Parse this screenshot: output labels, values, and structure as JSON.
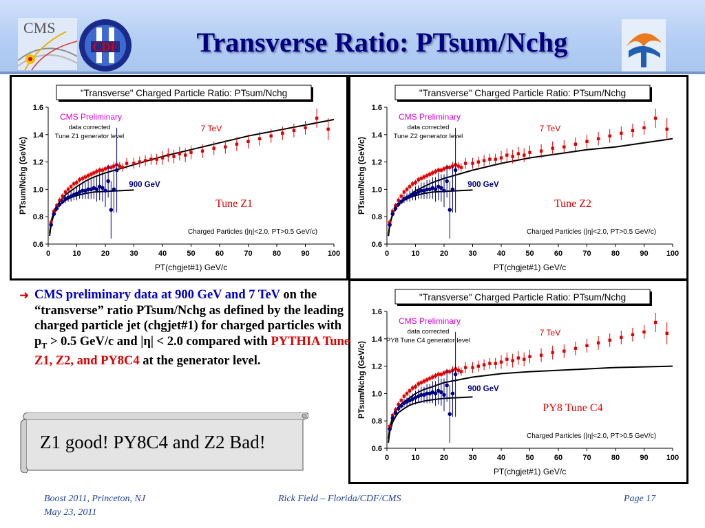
{
  "slide": {
    "title": "Transverse Ratio: PTsum/Nchg",
    "logos": {
      "left1": "CMS",
      "left2": "CDF"
    }
  },
  "bullet": {
    "lead": "CMS preliminary data at  900 GeV and 7 TeV",
    "t1": " on the “transverse” ratio PTsum/Nchg as defined by the leading charged particle jet (chgjet#1) for charged particles with p",
    "sub": "T",
    "t2": " > 0.5 GeV/c and |η| < 2.0 compared with ",
    "red": "PYTHIA Tune Z1, Z2, and PY8C4",
    "t3": " at the generator level."
  },
  "callout": {
    "text": "Z1 good!  PY8C4 and Z2 Bad!"
  },
  "footer": {
    "left1": "Boost 2011, Princeton, NJ",
    "left2": "May 23, 2011",
    "center": "Rick Field – Florida/CDF/CMS",
    "right": "Page 17"
  },
  "colors": {
    "data_7tev": "#e00000",
    "data_900gev": "#000080",
    "theory": "#000000",
    "cms_prelim": "#e000e0",
    "tune_label": "#e00000",
    "title_blue": "#000080"
  },
  "chart_data": [
    {
      "type": "scatter",
      "title": "\"Transverse\" Charged Particle Ratio: PTsum/Nchg",
      "xlabel": "PT(chgjet#1) GeV/c",
      "ylabel": "PTsum/Nchg (GeV/c)",
      "xlim": [
        0,
        100
      ],
      "ylim": [
        0.6,
        1.6
      ],
      "xticks": [
        "0",
        "10",
        "20",
        "30",
        "40",
        "50",
        "60",
        "70",
        "80",
        "90",
        "100"
      ],
      "yticks": [
        "0.6",
        "0.8",
        "1.0",
        "1.2",
        "1.4",
        "1.6"
      ],
      "annotations": {
        "prelim": "CMS Preliminary",
        "corr": "data corrected",
        "gen": "Tune Z1 generator level",
        "tune": "Tune Z1",
        "cuts": "Charged Particles (|η|<2.0, PT>0.5 GeV/c)",
        "label_7": "7 TeV",
        "label_900": "900 GeV"
      },
      "series": [
        {
          "name": "7 TeV",
          "x": [
            1,
            2,
            3,
            4,
            5,
            6,
            7,
            8,
            9,
            10,
            11,
            12,
            13,
            14,
            15,
            16,
            17,
            18,
            19,
            20,
            21,
            22,
            23,
            24,
            25,
            26,
            27.5,
            30,
            32,
            34,
            36,
            38,
            40,
            42,
            44,
            46,
            48,
            50,
            54,
            58,
            62,
            66,
            70,
            74,
            78,
            82,
            86,
            90,
            94,
            98
          ],
          "y": [
            0.76,
            0.84,
            0.88,
            0.92,
            0.95,
            0.98,
            1.0,
            1.02,
            1.04,
            1.05,
            1.07,
            1.08,
            1.09,
            1.1,
            1.11,
            1.12,
            1.13,
            1.14,
            1.14,
            1.15,
            1.16,
            1.16,
            1.17,
            1.18,
            1.17,
            1.16,
            1.19,
            1.19,
            1.2,
            1.21,
            1.22,
            1.22,
            1.23,
            1.25,
            1.24,
            1.26,
            1.25,
            1.27,
            1.28,
            1.3,
            1.31,
            1.33,
            1.35,
            1.37,
            1.39,
            1.41,
            1.43,
            1.45,
            1.52,
            1.44
          ],
          "err": [
            0.02,
            0.02,
            0.02,
            0.02,
            0.02,
            0.02,
            0.02,
            0.02,
            0.02,
            0.02,
            0.02,
            0.02,
            0.02,
            0.02,
            0.02,
            0.02,
            0.02,
            0.02,
            0.02,
            0.02,
            0.02,
            0.02,
            0.03,
            0.03,
            0.03,
            0.03,
            0.04,
            0.04,
            0.04,
            0.04,
            0.04,
            0.04,
            0.05,
            0.05,
            0.05,
            0.05,
            0.05,
            0.05,
            0.05,
            0.05,
            0.05,
            0.05,
            0.05,
            0.05,
            0.05,
            0.05,
            0.05,
            0.05,
            0.07,
            0.08
          ]
        },
        {
          "name": "900 GeV",
          "x": [
            1,
            2,
            3,
            4,
            5,
            6,
            7,
            8,
            9,
            10,
            11,
            12,
            13,
            14,
            15,
            16,
            17,
            18,
            19,
            20,
            21,
            22,
            23,
            24
          ],
          "y": [
            0.74,
            0.82,
            0.86,
            0.89,
            0.91,
            0.93,
            0.94,
            0.95,
            0.96,
            0.97,
            0.98,
            0.99,
            0.99,
            1.0,
            1.0,
            1.01,
            1.0,
            1.02,
            1.01,
            0.99,
            1.06,
            0.85,
            1.0,
            1.14
          ],
          "err": [
            0.02,
            0.02,
            0.02,
            0.02,
            0.02,
            0.03,
            0.03,
            0.04,
            0.04,
            0.05,
            0.05,
            0.06,
            0.06,
            0.07,
            0.07,
            0.08,
            0.09,
            0.1,
            0.1,
            0.12,
            0.12,
            0.21,
            0.17,
            0.31
          ]
        }
      ],
      "theory": {
        "900 GeV": {
          "x": [
            0.5,
            1,
            2,
            3,
            4,
            6,
            8,
            10,
            13,
            16,
            20,
            25,
            30
          ],
          "y": [
            0.66,
            0.74,
            0.82,
            0.86,
            0.89,
            0.92,
            0.94,
            0.955,
            0.97,
            0.98,
            0.985,
            0.99,
            0.995
          ]
        },
        "7 TeV": {
          "x": [
            0.5,
            1,
            2,
            3,
            4,
            6,
            8,
            10,
            13,
            16,
            20,
            25,
            30,
            40,
            50,
            60,
            70,
            80,
            90,
            100
          ],
          "y": [
            0.68,
            0.76,
            0.84,
            0.88,
            0.91,
            0.96,
            0.99,
            1.02,
            1.06,
            1.09,
            1.12,
            1.15,
            1.18,
            1.24,
            1.29,
            1.34,
            1.39,
            1.43,
            1.47,
            1.51
          ]
        }
      }
    },
    {
      "type": "scatter",
      "title": "\"Transverse\" Charged Particle Ratio: PTsum/Nchg",
      "xlabel": "PT(chgjet#1) GeV/c",
      "ylabel": "PTsum/Nchg (GeV/c)",
      "xlim": [
        0,
        100
      ],
      "ylim": [
        0.6,
        1.6
      ],
      "xticks": [
        "0",
        "10",
        "20",
        "30",
        "40",
        "50",
        "60",
        "70",
        "80",
        "90",
        "100"
      ],
      "yticks": [
        "0.6",
        "0.8",
        "1.0",
        "1.2",
        "1.4",
        "1.6"
      ],
      "annotations": {
        "prelim": "CMS Preliminary",
        "corr": "data corrected",
        "gen": "Tune Z2 generator level",
        "tune": "Tune Z2",
        "cuts": "Charged Particles (|η|<2.0, PT>0.5 GeV/c)",
        "label_7": "7 TeV",
        "label_900": "900 GeV"
      },
      "series": [
        {
          "name": "7 TeV",
          "x": [
            1,
            2,
            3,
            4,
            5,
            6,
            7,
            8,
            9,
            10,
            11,
            12,
            13,
            14,
            15,
            16,
            17,
            18,
            19,
            20,
            21,
            22,
            23,
            24,
            25,
            26,
            27.5,
            30,
            32,
            34,
            36,
            38,
            40,
            42,
            44,
            46,
            48,
            50,
            54,
            58,
            62,
            66,
            70,
            74,
            78,
            82,
            86,
            90,
            94,
            98
          ],
          "y": [
            0.76,
            0.84,
            0.88,
            0.92,
            0.95,
            0.98,
            1.0,
            1.02,
            1.04,
            1.05,
            1.07,
            1.08,
            1.09,
            1.1,
            1.11,
            1.12,
            1.13,
            1.14,
            1.14,
            1.15,
            1.16,
            1.16,
            1.17,
            1.18,
            1.17,
            1.16,
            1.19,
            1.19,
            1.2,
            1.21,
            1.22,
            1.22,
            1.23,
            1.25,
            1.24,
            1.26,
            1.25,
            1.27,
            1.28,
            1.3,
            1.31,
            1.33,
            1.35,
            1.37,
            1.39,
            1.41,
            1.43,
            1.45,
            1.52,
            1.44
          ],
          "err": [
            0.02,
            0.02,
            0.02,
            0.02,
            0.02,
            0.02,
            0.02,
            0.02,
            0.02,
            0.02,
            0.02,
            0.02,
            0.02,
            0.02,
            0.02,
            0.02,
            0.02,
            0.02,
            0.02,
            0.02,
            0.02,
            0.02,
            0.03,
            0.03,
            0.03,
            0.03,
            0.04,
            0.04,
            0.04,
            0.04,
            0.04,
            0.04,
            0.05,
            0.05,
            0.05,
            0.05,
            0.05,
            0.05,
            0.05,
            0.05,
            0.05,
            0.05,
            0.05,
            0.05,
            0.05,
            0.05,
            0.05,
            0.05,
            0.07,
            0.08
          ]
        },
        {
          "name": "900 GeV",
          "x": [
            1,
            2,
            3,
            4,
            5,
            6,
            7,
            8,
            9,
            10,
            11,
            12,
            13,
            14,
            15,
            16,
            17,
            18,
            19,
            20,
            21,
            22,
            23,
            24
          ],
          "y": [
            0.74,
            0.82,
            0.86,
            0.89,
            0.91,
            0.93,
            0.94,
            0.95,
            0.96,
            0.97,
            0.98,
            0.99,
            0.99,
            1.0,
            1.0,
            1.01,
            1.0,
            1.02,
            1.01,
            0.99,
            1.06,
            0.85,
            1.0,
            1.14
          ],
          "err": [
            0.02,
            0.02,
            0.02,
            0.02,
            0.02,
            0.03,
            0.03,
            0.04,
            0.04,
            0.05,
            0.05,
            0.06,
            0.06,
            0.07,
            0.07,
            0.08,
            0.09,
            0.1,
            0.1,
            0.12,
            0.12,
            0.21,
            0.17,
            0.31
          ]
        }
      ],
      "theory": {
        "900 GeV": {
          "x": [
            0.5,
            1,
            2,
            3,
            4,
            6,
            8,
            10,
            13,
            16,
            20,
            25,
            30
          ],
          "y": [
            0.66,
            0.74,
            0.82,
            0.86,
            0.89,
            0.92,
            0.94,
            0.955,
            0.97,
            0.98,
            0.985,
            0.99,
            0.995
          ]
        },
        "7 TeV": {
          "x": [
            0.5,
            1,
            2,
            3,
            4,
            6,
            8,
            10,
            13,
            16,
            20,
            25,
            30,
            40,
            50,
            60,
            70,
            80,
            90,
            100
          ],
          "y": [
            0.66,
            0.74,
            0.82,
            0.86,
            0.89,
            0.93,
            0.96,
            0.99,
            1.02,
            1.05,
            1.08,
            1.11,
            1.14,
            1.19,
            1.23,
            1.26,
            1.29,
            1.31,
            1.34,
            1.37
          ]
        }
      }
    },
    {
      "type": "scatter",
      "title": "\"Transverse\" Charged Particle Ratio: PTsum/Nchg",
      "xlabel": "PT(chgjet#1) GeV/c",
      "ylabel": "PTsum/Nchg (GeV/c)",
      "xlim": [
        0,
        100
      ],
      "ylim": [
        0.6,
        1.6
      ],
      "xticks": [
        "0",
        "10",
        "20",
        "30",
        "40",
        "50",
        "60",
        "70",
        "80",
        "90",
        "100"
      ],
      "yticks": [
        "0.6",
        "0.8",
        "1.0",
        "1.2",
        "1.4",
        "1.6"
      ],
      "annotations": {
        "prelim": "CMS Preliminary",
        "corr": "data corrected",
        "gen": "PY8 Tune C4 generator level",
        "tune": "PY8 Tune C4",
        "cuts": "Charged Particles (|η|<2.0, PT>0.5 GeV/c)",
        "label_7": "7 TeV",
        "label_900": "900 GeV"
      },
      "series": [
        {
          "name": "7 TeV",
          "x": [
            1,
            2,
            3,
            4,
            5,
            6,
            7,
            8,
            9,
            10,
            11,
            12,
            13,
            14,
            15,
            16,
            17,
            18,
            19,
            20,
            21,
            22,
            23,
            24,
            25,
            26,
            27.5,
            30,
            32,
            34,
            36,
            38,
            40,
            42,
            44,
            46,
            48,
            50,
            54,
            58,
            62,
            66,
            70,
            74,
            78,
            82,
            86,
            90,
            94,
            98
          ],
          "y": [
            0.76,
            0.84,
            0.88,
            0.92,
            0.95,
            0.98,
            1.0,
            1.02,
            1.04,
            1.05,
            1.07,
            1.08,
            1.09,
            1.1,
            1.11,
            1.12,
            1.13,
            1.14,
            1.14,
            1.15,
            1.16,
            1.16,
            1.17,
            1.18,
            1.17,
            1.16,
            1.19,
            1.19,
            1.2,
            1.21,
            1.22,
            1.22,
            1.23,
            1.25,
            1.24,
            1.26,
            1.25,
            1.27,
            1.28,
            1.3,
            1.31,
            1.33,
            1.35,
            1.37,
            1.39,
            1.41,
            1.43,
            1.45,
            1.52,
            1.44
          ],
          "err": [
            0.02,
            0.02,
            0.02,
            0.02,
            0.02,
            0.02,
            0.02,
            0.02,
            0.02,
            0.02,
            0.02,
            0.02,
            0.02,
            0.02,
            0.02,
            0.02,
            0.02,
            0.02,
            0.02,
            0.02,
            0.02,
            0.02,
            0.03,
            0.03,
            0.03,
            0.03,
            0.04,
            0.04,
            0.04,
            0.04,
            0.04,
            0.04,
            0.05,
            0.05,
            0.05,
            0.05,
            0.05,
            0.05,
            0.05,
            0.05,
            0.05,
            0.05,
            0.05,
            0.05,
            0.05,
            0.05,
            0.05,
            0.05,
            0.07,
            0.08
          ]
        },
        {
          "name": "900 GeV",
          "x": [
            1,
            2,
            3,
            4,
            5,
            6,
            7,
            8,
            9,
            10,
            11,
            12,
            13,
            14,
            15,
            16,
            17,
            18,
            19,
            20,
            21,
            22,
            23,
            24
          ],
          "y": [
            0.74,
            0.82,
            0.86,
            0.89,
            0.91,
            0.93,
            0.94,
            0.95,
            0.96,
            0.97,
            0.98,
            0.99,
            0.99,
            1.0,
            1.0,
            1.01,
            1.0,
            1.02,
            1.01,
            0.99,
            1.06,
            0.85,
            1.0,
            1.14
          ],
          "err": [
            0.02,
            0.02,
            0.02,
            0.02,
            0.02,
            0.03,
            0.03,
            0.04,
            0.04,
            0.05,
            0.05,
            0.06,
            0.06,
            0.07,
            0.07,
            0.08,
            0.09,
            0.1,
            0.1,
            0.12,
            0.12,
            0.21,
            0.17,
            0.31
          ]
        }
      ],
      "theory": {
        "900 GeV": {
          "x": [
            0.5,
            1,
            2,
            3,
            4,
            6,
            8,
            10,
            13,
            16,
            20,
            25,
            30
          ],
          "y": [
            0.64,
            0.72,
            0.79,
            0.83,
            0.86,
            0.89,
            0.915,
            0.93,
            0.945,
            0.955,
            0.965,
            0.97,
            0.975
          ]
        },
        "7 TeV": {
          "x": [
            0.5,
            1,
            2,
            3,
            4,
            6,
            8,
            10,
            13,
            16,
            20,
            25,
            30,
            40,
            50,
            60,
            70,
            80,
            90,
            100
          ],
          "y": [
            0.67,
            0.75,
            0.83,
            0.87,
            0.9,
            0.94,
            0.97,
            1.0,
            1.03,
            1.05,
            1.08,
            1.1,
            1.12,
            1.145,
            1.16,
            1.17,
            1.18,
            1.19,
            1.195,
            1.2
          ]
        }
      }
    }
  ]
}
